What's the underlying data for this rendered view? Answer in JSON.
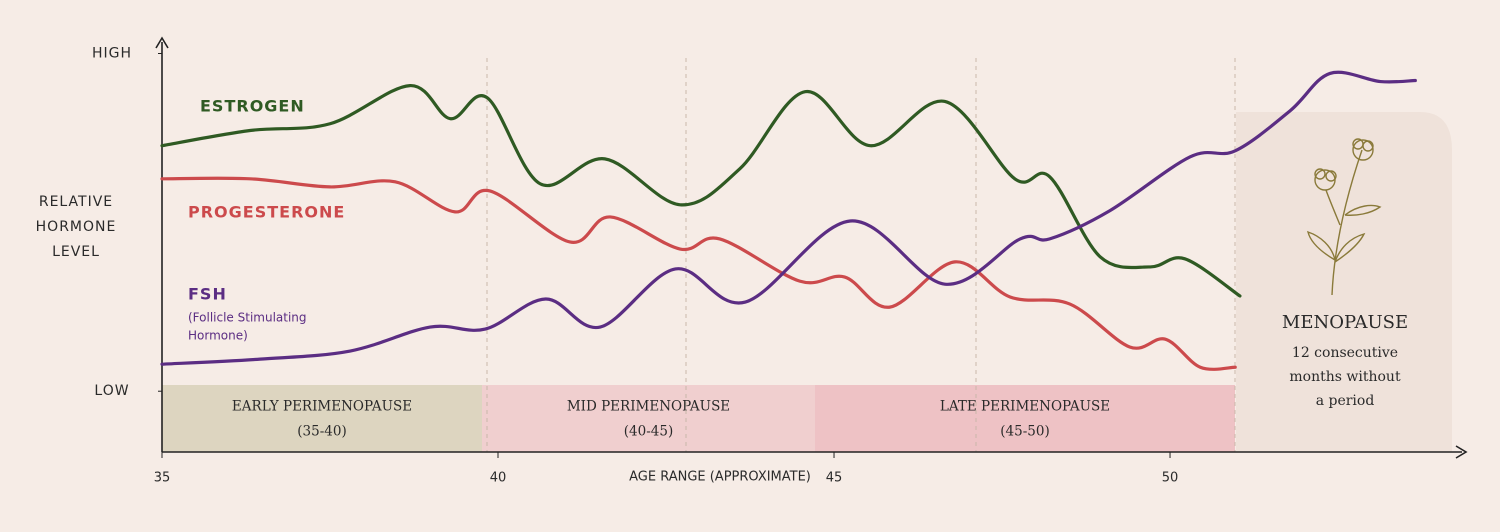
{
  "chart_data": {
    "type": "line",
    "y_label_lines": [
      "RELATIVE",
      "HORMONE",
      "LEVEL"
    ],
    "x_label": "AGE RANGE (APPROXIMATE)",
    "xlim": [
      35,
      54.3
    ],
    "xticks": [
      35,
      40,
      45,
      50
    ],
    "ylim": [
      -1.8,
      10.4
    ],
    "yticks": [
      {
        "value": 0,
        "label": "LOW"
      },
      {
        "value": 10,
        "label": "HIGH"
      }
    ],
    "series": [
      {
        "name": "ESTROGEN",
        "color": "#2f5a23",
        "x": [
          35,
          36.31,
          37.5,
          38.69,
          39.29,
          39.84,
          40.63,
          41.59,
          42.71,
          43.6,
          44.57,
          45.54,
          46.65,
          47.69,
          48.21,
          48.96,
          49.7,
          50.22,
          51.04
        ],
        "values": [
          7.27,
          7.72,
          7.92,
          9.05,
          8.07,
          8.69,
          6.14,
          6.88,
          5.52,
          6.59,
          8.87,
          7.27,
          8.58,
          6.29,
          6.35,
          3.98,
          3.68,
          3.92,
          2.82
        ]
      },
      {
        "name": "PROGESTERONE",
        "color": "#cc4a4c",
        "x": [
          35,
          36.31,
          37.5,
          38.47,
          39.36,
          39.88,
          41.07,
          41.67,
          42.71,
          43.3,
          44.49,
          45.16,
          45.83,
          46.8,
          47.62,
          48.51,
          49.4,
          49.93,
          50.45,
          50.97
        ],
        "values": [
          6.29,
          6.29,
          6.05,
          6.2,
          5.31,
          5.93,
          4.42,
          5.16,
          4.21,
          4.51,
          3.26,
          3.38,
          2.49,
          3.83,
          2.79,
          2.58,
          1.31,
          1.54,
          0.71,
          0.71
        ]
      },
      {
        "name": "FSH",
        "note": [
          "(Follicle Stimulating",
          "Hormone)"
        ],
        "color": "#5b2d83",
        "x": [
          35,
          36.46,
          37.8,
          38.99,
          39.81,
          40.71,
          41.52,
          42.64,
          43.68,
          45.24,
          46.65,
          47.77,
          48.21,
          49.1,
          50.3,
          50.97,
          51.79,
          52.38,
          53.13,
          53.65
        ],
        "values": [
          0.8,
          0.95,
          1.19,
          1.9,
          1.84,
          2.73,
          1.9,
          3.62,
          2.64,
          5.04,
          3.17,
          4.51,
          4.51,
          5.34,
          6.94,
          7.12,
          8.31,
          9.41,
          9.17,
          9.2
        ]
      }
    ],
    "phases": [
      {
        "name": "EARLY PERIMENOPAUSE",
        "range": "(35-40)",
        "color": "#ddd5c0"
      },
      {
        "name": "MID PERIMENOPAUSE",
        "range": "(40-45)",
        "color": "#f0cfcf"
      },
      {
        "name": "LATE PERIMENOPAUSE",
        "range": "(45-50)",
        "color": "#eec2c5"
      }
    ],
    "menopause": {
      "title": "MENOPAUSE",
      "lines": [
        "12 consecutive",
        "months without",
        "a period"
      ]
    }
  }
}
